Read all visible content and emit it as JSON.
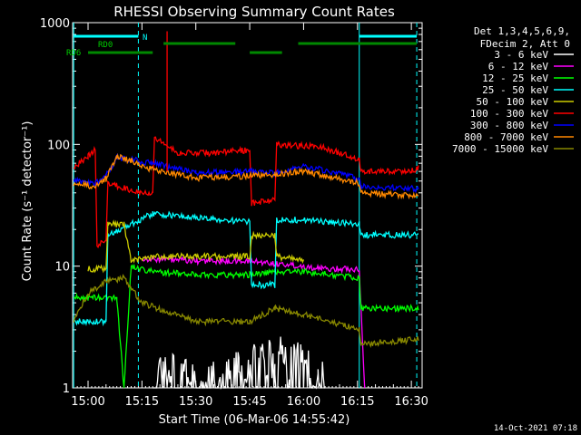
{
  "chart_data": {
    "type": "line",
    "title": "RHESSI Observing Summary Count Rates",
    "xlabel": "Start Time (06-Mar-06 14:55:42)",
    "ylabel": "Count Rate (s⁻¹ detector⁻¹)",
    "y_scale": "log",
    "ylim": [
      1,
      1000
    ],
    "xlim": [
      "14:55:42",
      "16:33:00"
    ],
    "x_ticks": [
      "15:00",
      "15:15",
      "15:30",
      "15:45",
      "16:00",
      "16:15",
      "16:30"
    ],
    "y_ticks": [
      "1",
      "10",
      "100",
      "1000"
    ],
    "legend_header": [
      "Det 1,3,4,5,6,9,",
      "FDecim 2, Att 0"
    ],
    "footer_date": "14-Oct-2021 07:18",
    "flag_labels": {
      "n": "N",
      "rd0": "RD0",
      "rd6": "RD6"
    },
    "flags": [
      {
        "name": "N",
        "color": "#00ffff",
        "segments": [
          [
            "14:56:00",
            "15:14:00"
          ],
          [
            "16:15:30",
            "16:31:30"
          ]
        ]
      },
      {
        "name": "RD0",
        "color": "#008800",
        "segments": [
          [
            "15:21:00",
            "15:41:00"
          ],
          [
            "15:58:30",
            "16:31:30"
          ]
        ]
      },
      {
        "name": "RD6",
        "color": "#008800",
        "segments": [
          [
            "15:00:00",
            "15:18:00"
          ],
          [
            "15:45:00",
            "15:54:00"
          ]
        ]
      }
    ],
    "vertical_lines": [
      {
        "time": "14:56:00",
        "style": "solid",
        "color": "#00ffff"
      },
      {
        "time": "15:14:00",
        "style": "dashed",
        "color": "#00ffff"
      },
      {
        "time": "16:15:30",
        "style": "solid",
        "color": "#00ffff"
      },
      {
        "time": "16:31:30",
        "style": "dashed",
        "color": "#00ffff"
      }
    ],
    "spike": {
      "time": "15:22:00",
      "value": 850,
      "color": "#ff0000"
    },
    "series": [
      {
        "name": "3 - 6 keV",
        "color": "#ffffff",
        "noisy": true,
        "points": [
          [
            "15:18:00",
            1.0
          ],
          [
            "15:22:00",
            1.4
          ],
          [
            "15:32:00",
            1.0
          ],
          [
            "15:42:00",
            1.4
          ],
          [
            "15:52:00",
            1.8
          ],
          [
            "16:04:00",
            1.4
          ],
          [
            "16:06:00",
            1.0
          ]
        ]
      },
      {
        "name": "6 - 12 keV",
        "color": "#ff00ff",
        "points": [
          [
            "15:15:00",
            11.5
          ],
          [
            "15:18:00",
            11.5
          ],
          [
            "15:30:00",
            11
          ],
          [
            "15:45:00",
            11
          ],
          [
            "15:52:00",
            10.5
          ],
          [
            "16:00:00",
            10
          ],
          [
            "16:05:00",
            9.5
          ],
          [
            "16:15:30",
            9.5
          ],
          [
            "16:17:00",
            1.0
          ]
        ]
      },
      {
        "name": "12 - 25 keV",
        "color": "#00ff00",
        "points": [
          [
            "14:56:00",
            5.5
          ],
          [
            "15:00:00",
            5.5
          ],
          [
            "15:08:00",
            5.5
          ],
          [
            "15:10:00",
            1.0
          ],
          [
            "15:12:00",
            10
          ],
          [
            "15:18:00",
            9
          ],
          [
            "15:30:00",
            8.5
          ],
          [
            "15:45:00",
            8.5
          ],
          [
            "15:52:00",
            9
          ],
          [
            "16:00:00",
            9
          ],
          [
            "16:15:30",
            8
          ],
          [
            "16:16:00",
            4.5
          ],
          [
            "16:32:00",
            4.5
          ]
        ]
      },
      {
        "name": "25 - 50 keV",
        "color": "#00ffff",
        "points": [
          [
            "14:56:00",
            3.5
          ],
          [
            "15:00:00",
            3.5
          ],
          [
            "15:05:00",
            3.5
          ],
          [
            "15:05:30",
            18
          ],
          [
            "15:18:00",
            27
          ],
          [
            "15:30:00",
            25
          ],
          [
            "15:45:00",
            23
          ],
          [
            "15:45:30",
            7
          ],
          [
            "15:52:00",
            7
          ],
          [
            "15:52:30",
            24
          ],
          [
            "16:00:00",
            24
          ],
          [
            "16:15:30",
            22
          ],
          [
            "16:16:00",
            18
          ],
          [
            "16:32:00",
            18
          ]
        ]
      },
      {
        "name": "50 - 100 keV",
        "color": "#cccc00",
        "points": [
          [
            "15:00:00",
            9.5
          ],
          [
            "15:05:00",
            9.5
          ],
          [
            "15:05:30",
            22
          ],
          [
            "15:10:00",
            22
          ],
          [
            "15:12:00",
            11
          ],
          [
            "15:18:00",
            12
          ],
          [
            "15:30:00",
            12
          ],
          [
            "15:45:00",
            12
          ],
          [
            "15:45:30",
            18
          ],
          [
            "15:52:00",
            18
          ],
          [
            "15:52:30",
            12
          ],
          [
            "16:00:00",
            11
          ]
        ]
      },
      {
        "name": "100 - 300 keV",
        "color": "#ff0000",
        "points": [
          [
            "14:56:00",
            65
          ],
          [
            "15:00:00",
            80
          ],
          [
            "15:02:00",
            90
          ],
          [
            "15:02:30",
            15
          ],
          [
            "15:05:00",
            16
          ],
          [
            "15:05:30",
            48
          ],
          [
            "15:12:00",
            42
          ],
          [
            "15:18:00",
            40
          ],
          [
            "15:18:30",
            115
          ],
          [
            "15:25:00",
            85
          ],
          [
            "15:35:00",
            85
          ],
          [
            "15:45:00",
            90
          ],
          [
            "15:45:30",
            33
          ],
          [
            "15:52:00",
            35
          ],
          [
            "15:52:30",
            100
          ],
          [
            "16:05:00",
            95
          ],
          [
            "16:15:30",
            75
          ],
          [
            "16:16:00",
            60
          ],
          [
            "16:30:00",
            60
          ],
          [
            "16:32:00",
            65
          ]
        ]
      },
      {
        "name": "300 - 800 keV",
        "color": "#0000ff",
        "points": [
          [
            "14:56:00",
            50
          ],
          [
            "15:02:00",
            48
          ],
          [
            "15:05:00",
            55
          ],
          [
            "15:08:00",
            78
          ],
          [
            "15:12:00",
            75
          ],
          [
            "15:18:00",
            70
          ],
          [
            "15:30:00",
            58
          ],
          [
            "15:45:00",
            60
          ],
          [
            "15:52:00",
            58
          ],
          [
            "16:00:00",
            67
          ],
          [
            "16:15:30",
            52
          ],
          [
            "16:16:00",
            45
          ],
          [
            "16:32:00",
            43
          ]
        ]
      },
      {
        "name": "800 - 7000 keV",
        "color": "#ff8800",
        "points": [
          [
            "14:56:00",
            48
          ],
          [
            "15:02:00",
            45
          ],
          [
            "15:05:00",
            52
          ],
          [
            "15:08:00",
            80
          ],
          [
            "15:12:00",
            73
          ],
          [
            "15:18:00",
            62
          ],
          [
            "15:30:00",
            53
          ],
          [
            "15:45:00",
            55
          ],
          [
            "15:52:00",
            57
          ],
          [
            "16:00:00",
            60
          ],
          [
            "16:15:30",
            48
          ],
          [
            "16:16:00",
            40
          ],
          [
            "16:32:00",
            38
          ]
        ]
      },
      {
        "name": "7000 - 15000 keV",
        "color": "#888800",
        "points": [
          [
            "14:56:00",
            3.5
          ],
          [
            "15:00:00",
            6
          ],
          [
            "15:05:00",
            7.5
          ],
          [
            "15:10:00",
            8
          ],
          [
            "15:15:00",
            5
          ],
          [
            "15:30:00",
            3.5
          ],
          [
            "15:45:00",
            3.5
          ],
          [
            "15:52:00",
            4.5
          ],
          [
            "16:00:00",
            4
          ],
          [
            "16:15:30",
            3
          ],
          [
            "16:16:00",
            2.3
          ],
          [
            "16:32:00",
            2.5
          ]
        ]
      }
    ]
  }
}
